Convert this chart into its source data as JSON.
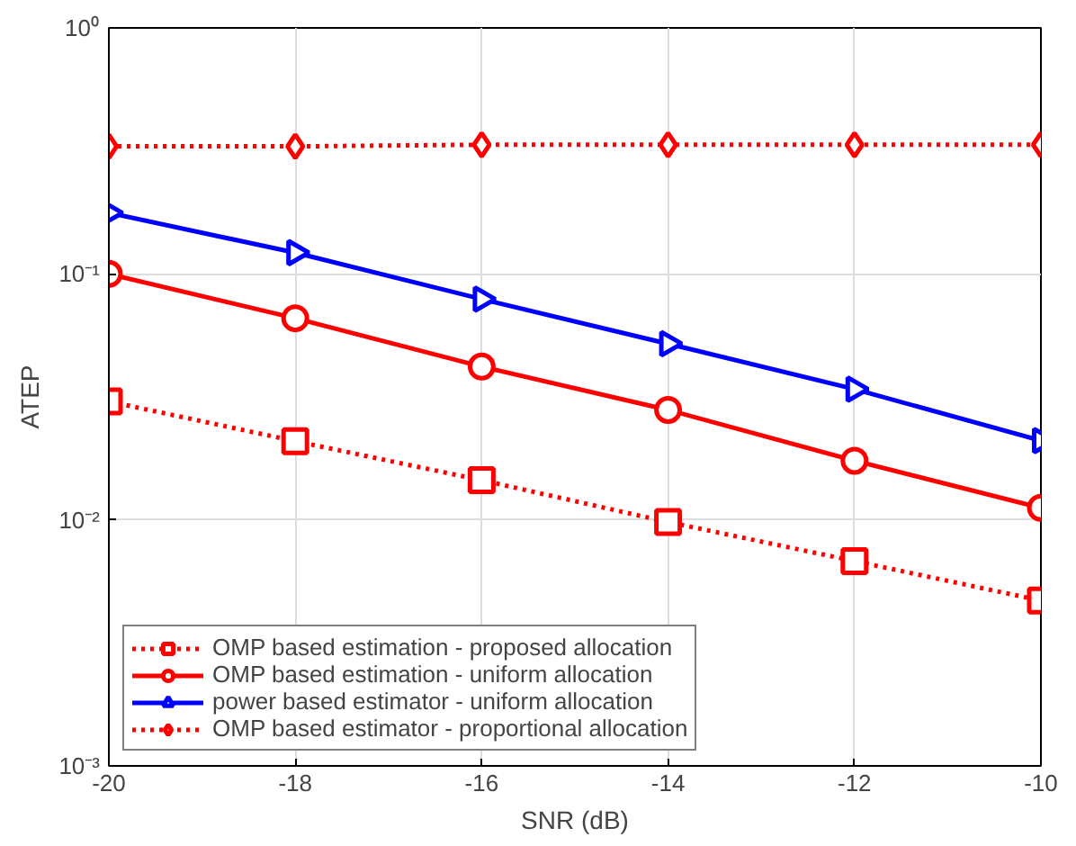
{
  "chart_data": {
    "type": "line",
    "xlabel": "SNR (dB)",
    "ylabel": "ATEP",
    "log": "y",
    "x": [
      -20,
      -18,
      -16,
      -14,
      -12,
      -10
    ],
    "xlim": [
      -20,
      -10
    ],
    "xticks": [
      -20,
      -18,
      -16,
      -14,
      -12,
      -10
    ],
    "ylim": [
      0.001,
      1
    ],
    "yticks": [
      {
        "value": 0.001,
        "label": "10⁻³"
      },
      {
        "value": 0.01,
        "label": "10⁻²"
      },
      {
        "value": 0.1,
        "label": "10⁻¹"
      },
      {
        "value": 1,
        "label": "10⁰"
      }
    ],
    "grid": true,
    "legend": "bottom left",
    "series": [
      {
        "name": "OMP based estimation - proposed allocation",
        "color": "#ff0000",
        "marker": "square",
        "line_style": "dotted",
        "values": [
          0.0303,
          0.0209,
          0.0145,
          0.0098,
          0.0068,
          0.0047
        ]
      },
      {
        "name": "OMP based estimation - uniform allocation",
        "color": "#ff0000",
        "marker": "circle",
        "line_style": "solid",
        "values": [
          0.1,
          0.066,
          0.042,
          0.028,
          0.0174,
          0.0112
        ]
      },
      {
        "name": "power based estimator - uniform allocation",
        "color": "#0000ff",
        "marker": "triangle",
        "line_style": "solid",
        "values": [
          0.177,
          0.122,
          0.079,
          0.052,
          0.034,
          0.021
        ]
      },
      {
        "name": "OMP based estimator - proportional allocation",
        "color": "#ff0000",
        "marker": "diamond",
        "line_style": "dotted",
        "values": [
          0.33,
          0.33,
          0.335,
          0.335,
          0.335,
          0.335
        ]
      }
    ]
  }
}
